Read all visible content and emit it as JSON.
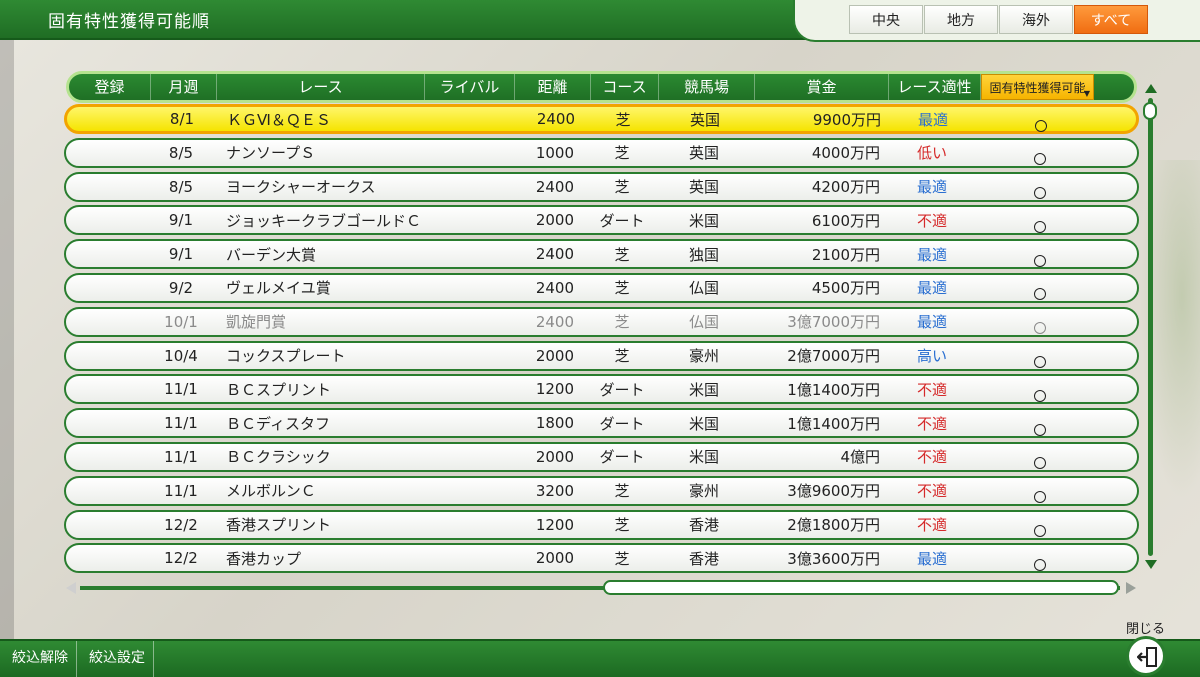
{
  "header": {
    "title": "固有特性獲得可能順"
  },
  "tabs": [
    {
      "label": "中央",
      "active": false
    },
    {
      "label": "地方",
      "active": false
    },
    {
      "label": "海外",
      "active": false
    },
    {
      "label": "すべて",
      "active": true
    }
  ],
  "table": {
    "columns": [
      "登録",
      "月週",
      "レース",
      "ライバル",
      "距離",
      "コース",
      "競馬場",
      "賞金",
      "レース適性",
      "固有特性獲得可能"
    ],
    "sort_column_index": 9,
    "rows": [
      {
        "reg": "",
        "week": "8/1",
        "race": "ＫＧⅥ＆ＱＥＳ",
        "rival": "",
        "dist": "2400",
        "course": "芝",
        "track": "英国",
        "prize": "9900万円",
        "aptitude": "最適",
        "apt_level": "best",
        "uniq": "○",
        "selected": true,
        "dim": false
      },
      {
        "reg": "",
        "week": "8/5",
        "race": "ナンソープＳ",
        "rival": "",
        "dist": "1000",
        "course": "芝",
        "track": "英国",
        "prize": "4000万円",
        "aptitude": "低い",
        "apt_level": "low",
        "uniq": "○",
        "selected": false,
        "dim": false
      },
      {
        "reg": "",
        "week": "8/5",
        "race": "ヨークシャーオークス",
        "rival": "",
        "dist": "2400",
        "course": "芝",
        "track": "英国",
        "prize": "4200万円",
        "aptitude": "最適",
        "apt_level": "best",
        "uniq": "○",
        "selected": false,
        "dim": false
      },
      {
        "reg": "",
        "week": "9/1",
        "race": "ジョッキークラブゴールドＣ",
        "rival": "",
        "dist": "2000",
        "course": "ダート",
        "track": "米国",
        "prize": "6100万円",
        "aptitude": "不適",
        "apt_level": "no",
        "uniq": "○",
        "selected": false,
        "dim": false
      },
      {
        "reg": "",
        "week": "9/1",
        "race": "バーデン大賞",
        "rival": "",
        "dist": "2400",
        "course": "芝",
        "track": "独国",
        "prize": "2100万円",
        "aptitude": "最適",
        "apt_level": "best",
        "uniq": "○",
        "selected": false,
        "dim": false
      },
      {
        "reg": "",
        "week": "9/2",
        "race": "ヴェルメイユ賞",
        "rival": "",
        "dist": "2400",
        "course": "芝",
        "track": "仏国",
        "prize": "4500万円",
        "aptitude": "最適",
        "apt_level": "best",
        "uniq": "○",
        "selected": false,
        "dim": false
      },
      {
        "reg": "",
        "week": "10/1",
        "race": "凱旋門賞",
        "rival": "",
        "dist": "2400",
        "course": "芝",
        "track": "仏国",
        "prize": "3億7000万円",
        "aptitude": "最適",
        "apt_level": "best",
        "uniq": "○",
        "selected": false,
        "dim": true
      },
      {
        "reg": "",
        "week": "10/4",
        "race": "コックスプレート",
        "rival": "",
        "dist": "2000",
        "course": "芝",
        "track": "豪州",
        "prize": "2億7000万円",
        "aptitude": "高い",
        "apt_level": "high",
        "uniq": "○",
        "selected": false,
        "dim": false
      },
      {
        "reg": "",
        "week": "11/1",
        "race": "ＢＣスプリント",
        "rival": "",
        "dist": "1200",
        "course": "ダート",
        "track": "米国",
        "prize": "1億1400万円",
        "aptitude": "不適",
        "apt_level": "no",
        "uniq": "○",
        "selected": false,
        "dim": false
      },
      {
        "reg": "",
        "week": "11/1",
        "race": "ＢＣディスタフ",
        "rival": "",
        "dist": "1800",
        "course": "ダート",
        "track": "米国",
        "prize": "1億1400万円",
        "aptitude": "不適",
        "apt_level": "no",
        "uniq": "○",
        "selected": false,
        "dim": false
      },
      {
        "reg": "",
        "week": "11/1",
        "race": "ＢＣクラシック",
        "rival": "",
        "dist": "2000",
        "course": "ダート",
        "track": "米国",
        "prize": "4億円",
        "aptitude": "不適",
        "apt_level": "no",
        "uniq": "○",
        "selected": false,
        "dim": false
      },
      {
        "reg": "",
        "week": "11/1",
        "race": "メルボルンＣ",
        "rival": "",
        "dist": "3200",
        "course": "芝",
        "track": "豪州",
        "prize": "3億9600万円",
        "aptitude": "不適",
        "apt_level": "no",
        "uniq": "○",
        "selected": false,
        "dim": false
      },
      {
        "reg": "",
        "week": "12/2",
        "race": "香港スプリント",
        "rival": "",
        "dist": "1200",
        "course": "芝",
        "track": "香港",
        "prize": "2億1800万円",
        "aptitude": "不適",
        "apt_level": "no",
        "uniq": "○",
        "selected": false,
        "dim": false
      },
      {
        "reg": "",
        "week": "12/2",
        "race": "香港カップ",
        "rival": "",
        "dist": "2000",
        "course": "芝",
        "track": "香港",
        "prize": "3億3600万円",
        "aptitude": "最適",
        "apt_level": "best",
        "uniq": "○",
        "selected": false,
        "dim": false
      }
    ]
  },
  "footer": {
    "clear_filter_label": "絞込解除",
    "filter_settings_label": "絞込設定",
    "close_label": "閉じる"
  },
  "icons": {
    "sort": "triangle-down-icon",
    "exit": "exit-door-icon",
    "scroll_up": "triangle-up-icon",
    "scroll_down": "triangle-down-icon",
    "scroll_left": "triangle-left-icon",
    "scroll_right": "triangle-right-icon"
  },
  "colors": {
    "primary_green": "#1f7025",
    "active_tab": "#f06d12",
    "selected_row": "#f5e400",
    "aptitude_good": "#2a6fd1",
    "aptitude_bad": "#d52a2a"
  }
}
